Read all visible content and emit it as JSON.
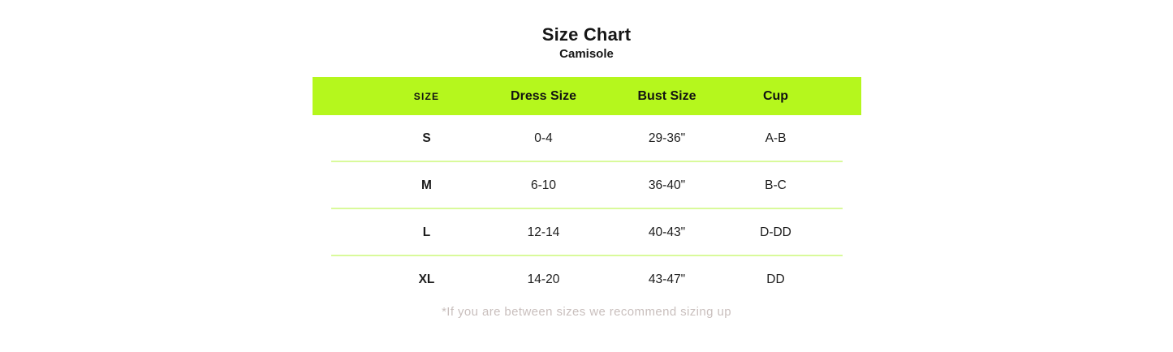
{
  "page": {
    "title": "Size Chart",
    "subtitle": "Camisole",
    "footnote": "*If you are between sizes we recommend sizing up"
  },
  "chart_data": {
    "type": "table",
    "title": "Size Chart",
    "subtitle": "Camisole",
    "columns": [
      "SIZE",
      "Dress Size",
      "Bust Size",
      "Cup"
    ],
    "rows": [
      [
        "S",
        "0-4",
        "29-36\"",
        "A-B"
      ],
      [
        "M",
        "6-10",
        "36-40\"",
        "B-C"
      ],
      [
        "L",
        "12-14",
        "40-43\"",
        "D-DD"
      ],
      [
        "XL",
        "14-20",
        "43-47\"",
        "DD"
      ]
    ],
    "footnote": "*If you are between sizes we recommend sizing up",
    "layout_hints": {
      "header_style": "highlighted bar",
      "row_dividers": true,
      "alignment": "center"
    }
  },
  "colors": {
    "header_bg": "#b5f71d",
    "row_divider": "#d9fa9b",
    "text": "#1c1c1c",
    "footnote_text": "#c9bfbd",
    "background": "#ffffff"
  }
}
